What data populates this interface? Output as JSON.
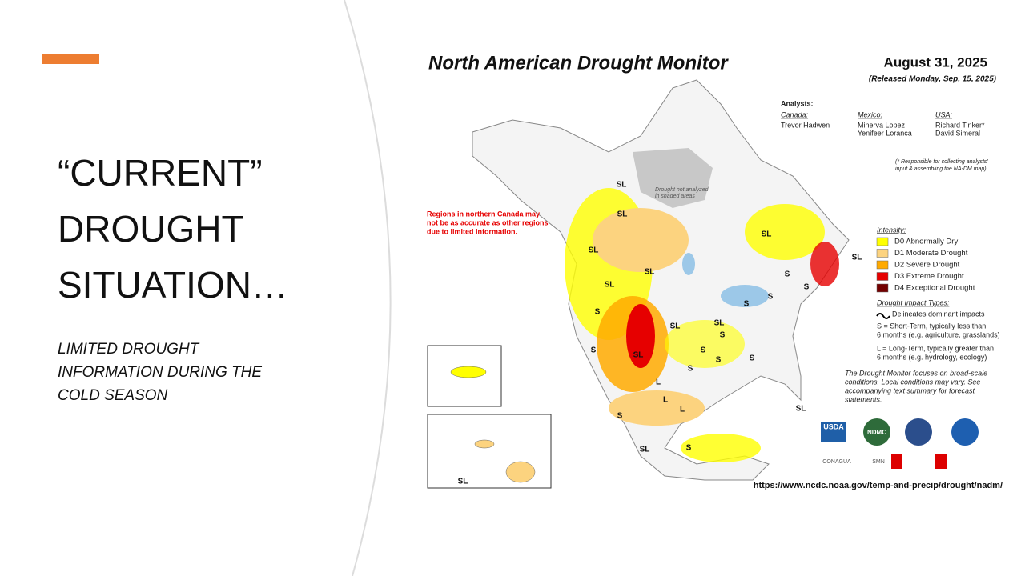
{
  "slide": {
    "title_lines": [
      "“CURRENT”",
      "DROUGHT",
      "SITUATION…"
    ],
    "subtitle_lines": [
      "LIMITED DROUGHT",
      "INFORMATION DURING THE",
      "COLD SEASON"
    ]
  },
  "map": {
    "title": "North American Drought Monitor",
    "date": "August 31, 2025",
    "released": "(Released Monday, Sep. 15, 2025)",
    "analysts_heading": "Analysts:",
    "analysts": [
      {
        "region": "Canada:",
        "names": [
          "Trevor Hadwen"
        ]
      },
      {
        "region": "Mexico:",
        "names": [
          "Minerva Lopez",
          "Yenifeer Loranca"
        ]
      },
      {
        "region": "USA:",
        "names": [
          "Richard Tinker*",
          "David Simeral"
        ]
      }
    ],
    "footnote_lines": [
      "(* Responsible for collecting analysts'",
      "input & assembling the NA-DM map)"
    ],
    "not_analyzed_lines": [
      "Drought not analyzed",
      "in shaded areas"
    ],
    "warning_lines": [
      "Regions in northern Canada may",
      "not be as accurate as other regions",
      "due to limited information."
    ],
    "intensity_heading": "Intensity:",
    "intensity": [
      {
        "label": "D0 Abnormally Dry",
        "color": "#ffff00"
      },
      {
        "label": "D1 Moderate Drought",
        "color": "#fcd37f"
      },
      {
        "label": "D2 Severe Drought",
        "color": "#ffaa00"
      },
      {
        "label": "D3 Extreme Drought",
        "color": "#e60000"
      },
      {
        "label": "D4 Exceptional Drought",
        "color": "#730000"
      }
    ],
    "impact_heading": "Drought Impact Types:",
    "impact_lines": [
      "Delineates dominant impacts",
      "S = Short-Term, typically less than",
      "6 months (e.g. agriculture, grasslands)",
      "L = Long-Term, typically greater than",
      "6 months (e.g. hydrology, ecology)"
    ],
    "note_lines": [
      "The Drought Monitor focuses on broad-scale",
      "conditions. Local conditions may vary. See",
      "accompanying text summary for forecast",
      "statements."
    ],
    "logos": [
      "USDA",
      "NDMC",
      "CONAGUA",
      "SMN"
    ],
    "url": "https://www.ncdc.noaa.gov/temp-and-precip/drought/nadm/",
    "labels": [
      "SL",
      "SL",
      "SL",
      "SL",
      "SL",
      "SL",
      "S",
      "SL",
      "S",
      "S",
      "S",
      "S",
      "SL",
      "SL",
      "S",
      "S",
      "SL",
      "S",
      "S",
      "S",
      "L",
      "L",
      "S",
      "L",
      "SL",
      "S",
      "SL",
      "S",
      "SL"
    ]
  }
}
